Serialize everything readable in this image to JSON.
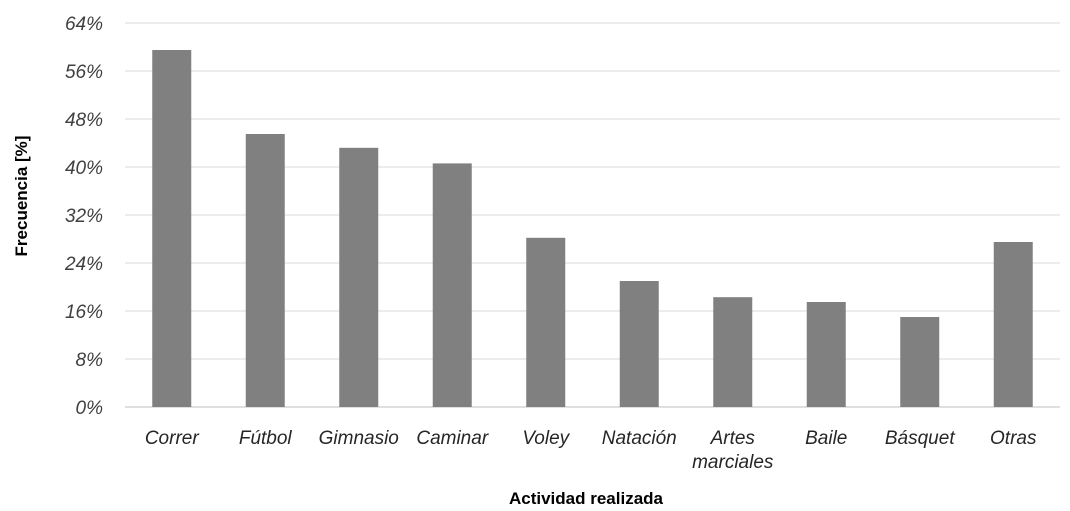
{
  "chart_data": {
    "type": "bar",
    "categories": [
      "Correr",
      "Fútbol",
      "Gimnasio",
      "Caminar",
      "Voley",
      "Natación",
      "Artes marciales",
      "Baile",
      "Básquet",
      "Otras"
    ],
    "category_lines": [
      [
        "Correr"
      ],
      [
        "Fútbol"
      ],
      [
        "Gimnasio"
      ],
      [
        "Caminar"
      ],
      [
        "Voley"
      ],
      [
        "Natación"
      ],
      [
        "Artes",
        "marciales"
      ],
      [
        "Baile"
      ],
      [
        "Básquet"
      ],
      [
        "Otras"
      ]
    ],
    "values": [
      59.5,
      45.5,
      43.2,
      40.6,
      28.2,
      21.0,
      18.3,
      17.5,
      15.0,
      27.5
    ],
    "xlabel": "Actividad realizada",
    "ylabel": "Frecuencia [%]",
    "ylim": [
      0,
      64
    ],
    "yticks": [
      0,
      8,
      16,
      24,
      32,
      40,
      48,
      56,
      64
    ],
    "ytick_labels": [
      "0%",
      "8%",
      "16%",
      "24%",
      "32%",
      "40%",
      "48%",
      "56%",
      "64%"
    ],
    "grid": true,
    "bar_color": "#808080"
  }
}
